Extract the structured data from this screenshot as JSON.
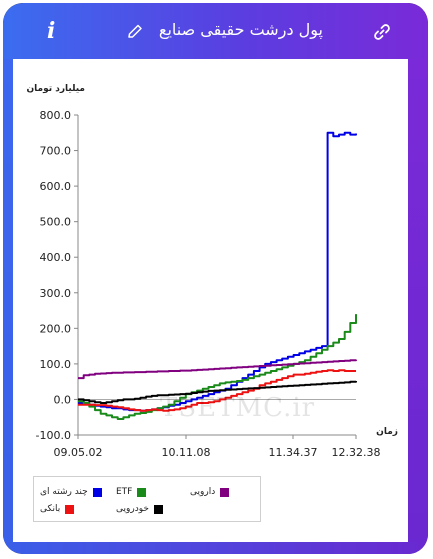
{
  "header": {
    "title": "پول درشت حقیقی صنایع"
  },
  "watermark": "TSETMC.ir",
  "chart_data": {
    "type": "line",
    "ylabel": "میلیارد تومان",
    "xlabel": "زمان",
    "ylim": [
      -100,
      800
    ],
    "yticks": [
      "800.0",
      "700.0",
      "600.0",
      "500.0",
      "400.0",
      "300.0",
      "200.0",
      "100.0",
      "0.0",
      "-100.0"
    ],
    "xtick_labels": [
      "09.05.02",
      "10.11.08",
      "11.34.37",
      "12.32.38"
    ],
    "grid": false,
    "legend_position": "bottom-left",
    "series": [
      {
        "name": "چند رشته ای",
        "color": "#0000e6",
        "values": [
          -10,
          -12,
          -15,
          -18,
          -20,
          -22,
          -25,
          -25,
          -28,
          -30,
          -30,
          -32,
          -30,
          -28,
          -25,
          -22,
          -18,
          -15,
          -10,
          -5,
          0,
          5,
          10,
          15,
          20,
          25,
          30,
          40,
          50,
          60,
          70,
          80,
          90,
          100,
          105,
          110,
          115,
          120,
          125,
          130,
          135,
          140,
          145,
          150,
          750,
          740,
          745,
          750,
          745,
          748
        ]
      },
      {
        "name": "ETF",
        "color": "#1a8a1a",
        "values": [
          -5,
          -10,
          -20,
          -30,
          -40,
          -45,
          -50,
          -55,
          -50,
          -45,
          -40,
          -38,
          -35,
          -30,
          -25,
          -20,
          -15,
          -5,
          5,
          15,
          20,
          25,
          30,
          35,
          40,
          45,
          48,
          50,
          52,
          55,
          60,
          65,
          70,
          75,
          80,
          85,
          90,
          95,
          100,
          105,
          110,
          120,
          130,
          140,
          150,
          160,
          170,
          190,
          215,
          240
        ]
      },
      {
        "name": "دارویی",
        "color": "#800080",
        "values": [
          60,
          68,
          70,
          72,
          73,
          74,
          75,
          75,
          76,
          76,
          77,
          77,
          78,
          78,
          79,
          79,
          80,
          80,
          81,
          81,
          82,
          83,
          84,
          85,
          86,
          87,
          88,
          89,
          90,
          91,
          92,
          93,
          94,
          95,
          96,
          97,
          98,
          99,
          100,
          101,
          102,
          103,
          104,
          105,
          106,
          107,
          108,
          109,
          110,
          112
        ]
      },
      {
        "name": "بانکی",
        "color": "#ee1111",
        "values": [
          -15,
          -15,
          -15,
          -16,
          -16,
          -18,
          -20,
          -22,
          -25,
          -28,
          -30,
          -32,
          -30,
          -28,
          -30,
          -32,
          -30,
          -28,
          -25,
          -20,
          -15,
          -10,
          -10,
          -8,
          -5,
          0,
          5,
          10,
          15,
          20,
          25,
          30,
          40,
          45,
          50,
          55,
          60,
          65,
          70,
          70,
          72,
          75,
          78,
          80,
          82,
          80,
          82,
          80,
          80,
          80
        ]
      },
      {
        "name": "خودرویی",
        "color": "#000000",
        "values": [
          0,
          -2,
          -5,
          -8,
          -10,
          -8,
          -5,
          -2,
          0,
          0,
          2,
          5,
          8,
          10,
          12,
          12,
          13,
          14,
          15,
          16,
          18,
          20,
          22,
          24,
          25,
          26,
          27,
          28,
          29,
          30,
          31,
          32,
          33,
          34,
          35,
          36,
          37,
          38,
          39,
          40,
          41,
          42,
          43,
          44,
          45,
          46,
          47,
          48,
          50,
          52
        ]
      }
    ]
  }
}
